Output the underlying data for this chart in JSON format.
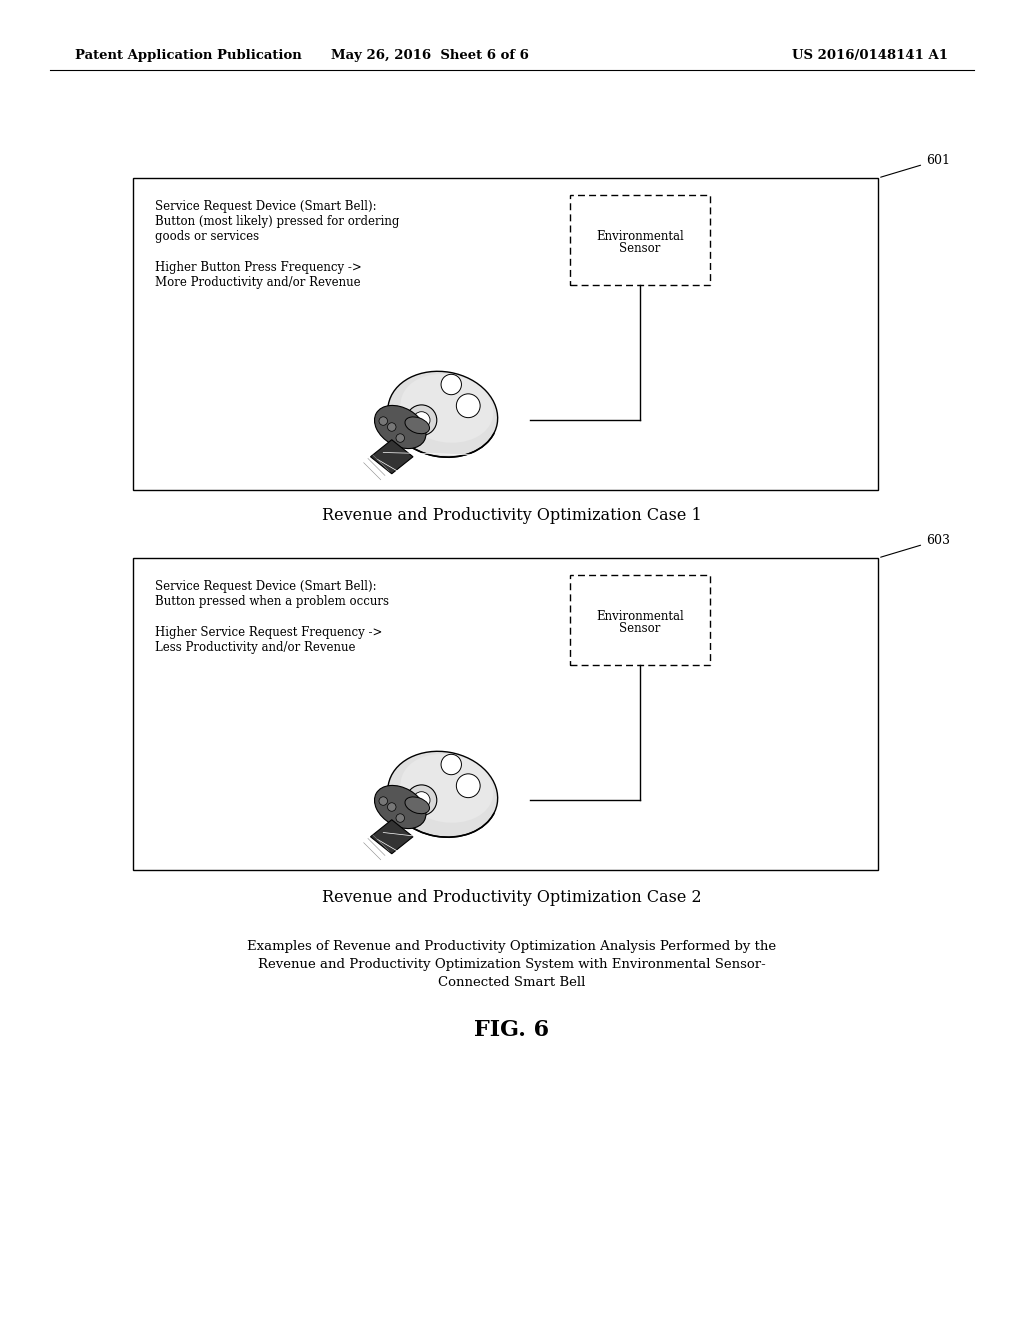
{
  "bg_color": "#ffffff",
  "header_left": "Patent Application Publication",
  "header_mid": "May 26, 2016  Sheet 6 of 6",
  "header_right": "US 2016/0148141 A1",
  "header_fontsize": 9.5,
  "box1_label": "601",
  "box2_label": "603",
  "case1_title": "Revenue and Productivity Optimization Case 1",
  "case2_title": "Revenue and Productivity Optimization Case 2",
  "box1_text1_l1": "Service Request Device (Smart Bell):",
  "box1_text1_l2": "Button (most likely) pressed for ordering",
  "box1_text1_l3": "goods or services",
  "box1_text2_l1": "Higher Button Press Frequency ->",
  "box1_text2_l2": "More Productivity and/or Revenue",
  "box2_text1_l1": "Service Request Device (Smart Bell):",
  "box2_text1_l2": "Button pressed when a problem occurs",
  "box2_text2_l1": "Higher Service Request Frequency ->",
  "box2_text2_l2": "Less Productivity and/or Revenue",
  "sensor_label_l1": "Environmental",
  "sensor_label_l2": "Sensor",
  "bottom_caption_line1": "Examples of Revenue and Productivity Optimization Analysis Performed by the",
  "bottom_caption_line2": "Revenue and Productivity Optimization System with Environmental Sensor-",
  "bottom_caption_line3": "Connected Smart Bell",
  "fig_label": "FIG. 6",
  "text_fontsize": 8.5,
  "title_fontsize": 11.5,
  "caption_fontsize": 9.5,
  "fig_label_fontsize": 16
}
